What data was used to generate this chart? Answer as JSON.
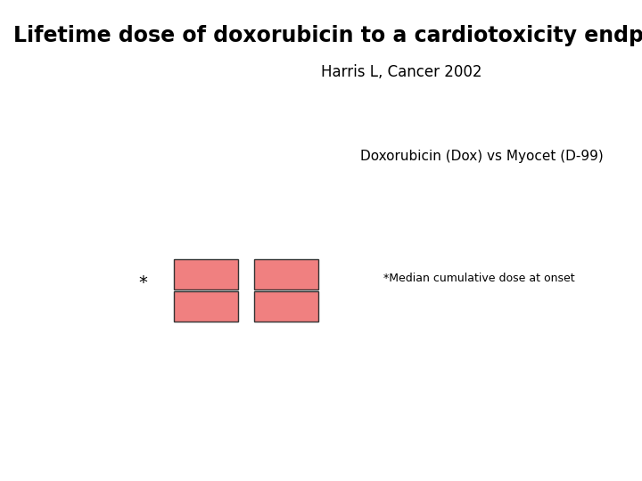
{
  "title": "Lifetime dose of doxorubicin to a cardiotoxicity endpoint",
  "subtitle": "Harris L, Cancer 2002",
  "label_dox": "Doxorubicin (Dox) vs Myocet (D-99)",
  "asterisk_text": "*",
  "annotation_text": "*Median cumulative dose at onset",
  "box_color": "#F08080",
  "box_edge_color": "#333333",
  "background_color": "#ffffff",
  "title_fontsize": 17,
  "subtitle_fontsize": 12,
  "label_fontsize": 11,
  "asterisk_fontsize": 14,
  "annotation_fontsize": 9
}
